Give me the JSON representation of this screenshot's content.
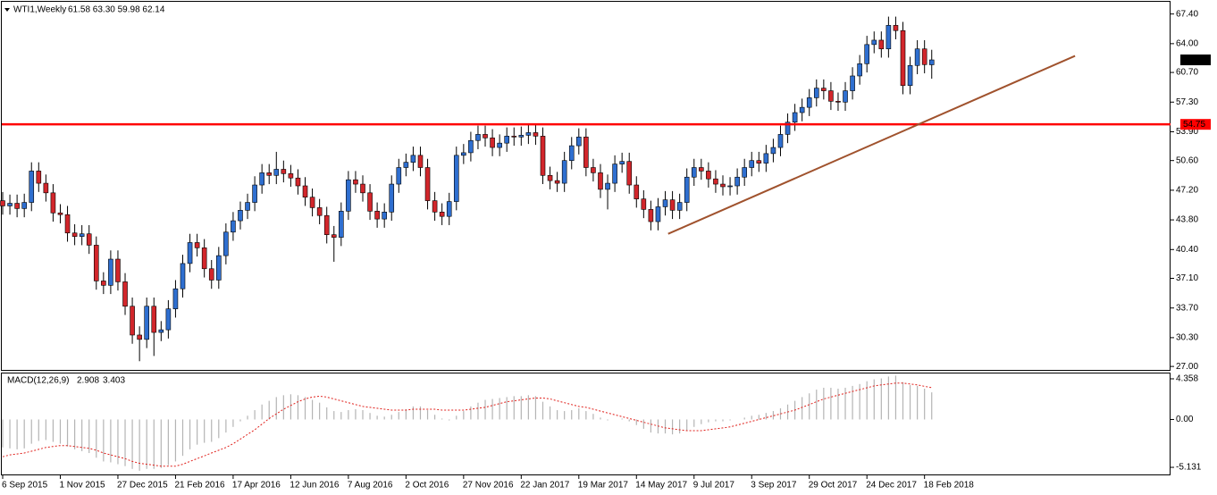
{
  "chart_data": [
    {
      "type": "candlestick",
      "header": {
        "symbol": "WTI1,Weekly",
        "ohlc": "61.58 63.30 59.98 62.14"
      },
      "categories": [
        "6 Sep 2015",
        null,
        null,
        null,
        null,
        null,
        null,
        null,
        "1 Nov 2015",
        null,
        null,
        null,
        null,
        null,
        null,
        null,
        "27 Dec 2015",
        null,
        null,
        null,
        null,
        null,
        null,
        null,
        "21 Feb 2016",
        null,
        null,
        null,
        null,
        null,
        null,
        null,
        "17 Apr 2016",
        null,
        null,
        null,
        null,
        null,
        null,
        null,
        "12 Jun 2016",
        null,
        null,
        null,
        null,
        null,
        null,
        null,
        "7 Aug 2016",
        null,
        null,
        null,
        null,
        null,
        null,
        null,
        "2 Oct 2016",
        null,
        null,
        null,
        null,
        null,
        null,
        null,
        "27 Nov 2016",
        null,
        null,
        null,
        null,
        null,
        null,
        null,
        "22 Jan 2017",
        null,
        null,
        null,
        null,
        null,
        null,
        null,
        "19 Mar 2017",
        null,
        null,
        null,
        null,
        null,
        null,
        null,
        "14 May 2017",
        null,
        null,
        null,
        null,
        null,
        null,
        null,
        "9 Jul 2017",
        null,
        null,
        null,
        null,
        null,
        null,
        null,
        "3 Sep 2017",
        null,
        null,
        null,
        null,
        null,
        null,
        null,
        "29 Oct 2017",
        null,
        null,
        null,
        null,
        null,
        null,
        null,
        "24 Dec 2017",
        null,
        null,
        null,
        null,
        null,
        null,
        null,
        "18 Feb 2018",
        null
      ],
      "open": [
        46.0,
        45.4,
        45.7,
        45.1,
        45.8,
        49.4,
        48.0,
        46.9,
        44.6,
        44.4,
        42.3,
        41.9,
        42.2,
        40.9,
        36.8,
        36.3,
        39.3,
        36.7,
        33.9,
        30.6,
        30.1,
        33.9,
        30.9,
        31.2,
        33.6,
        35.9,
        38.8,
        41.2,
        40.6,
        38.2,
        36.9,
        39.7,
        42.4,
        43.7,
        44.9,
        45.8,
        47.8,
        49.2,
        48.9,
        49.6,
        49.1,
        48.6,
        47.7,
        46.4,
        45.2,
        44.3,
        42.1,
        41.8,
        44.8,
        48.4,
        47.9,
        46.9,
        44.8,
        43.9,
        44.7,
        47.9,
        49.8,
        50.4,
        51.2,
        49.8,
        46.0,
        44.7,
        44.2,
        45.9,
        51.2,
        51.5,
        52.9,
        53.6,
        53.2,
        52.1,
        52.6,
        53.4,
        53.3,
        53.5,
        53.8,
        53.4,
        48.9,
        48.3,
        48.0,
        50.6,
        52.3,
        53.3,
        49.8,
        49.2,
        47.3,
        48.0,
        50.2,
        50.5,
        47.8,
        46.2,
        45.0,
        43.6,
        45.3,
        46.1,
        44.9,
        45.8,
        48.7,
        49.8,
        49.4,
        48.5,
        47.9,
        47.6,
        47.7,
        48.7,
        49.8,
        50.6,
        50.3,
        51.4,
        52.1,
        53.6,
        55.0,
        56.1,
        56.7,
        57.8,
        58.9,
        58.6,
        57.4,
        57.3,
        58.6,
        60.3,
        61.7,
        63.9,
        64.4,
        63.4,
        66.1,
        65.5,
        59.2,
        61.5,
        63.4,
        61.58
      ],
      "high": [
        47.0,
        46.7,
        46.7,
        46.8,
        50.4,
        50.4,
        49.0,
        47.9,
        45.6,
        45.4,
        43.3,
        43.2,
        43.2,
        41.9,
        37.8,
        40.3,
        40.3,
        37.7,
        34.9,
        31.6,
        34.9,
        34.9,
        32.2,
        34.6,
        36.9,
        39.8,
        42.2,
        42.2,
        41.6,
        39.2,
        40.7,
        43.4,
        44.7,
        45.9,
        46.8,
        48.8,
        50.2,
        50.2,
        51.6,
        50.6,
        50.1,
        49.6,
        48.7,
        47.4,
        46.2,
        45.3,
        43.1,
        45.8,
        49.4,
        49.4,
        48.9,
        47.9,
        45.8,
        45.7,
        48.9,
        50.8,
        51.4,
        52.2,
        52.2,
        50.8,
        47.0,
        45.7,
        46.9,
        52.2,
        52.5,
        53.9,
        54.6,
        54.6,
        54.2,
        53.6,
        54.4,
        54.4,
        54.5,
        54.8,
        54.8,
        54.4,
        49.9,
        49.3,
        51.6,
        53.3,
        54.3,
        54.3,
        50.8,
        50.2,
        49.0,
        51.2,
        51.5,
        51.5,
        48.8,
        47.2,
        46.0,
        46.3,
        47.1,
        47.1,
        46.8,
        49.7,
        50.8,
        50.8,
        50.4,
        49.5,
        48.9,
        48.7,
        49.7,
        50.8,
        51.6,
        51.6,
        52.4,
        53.1,
        54.6,
        56.0,
        57.1,
        57.7,
        58.8,
        59.9,
        59.9,
        59.6,
        58.4,
        59.6,
        61.3,
        62.7,
        64.9,
        65.4,
        65.4,
        67.1,
        67.1,
        66.5,
        62.5,
        64.4,
        64.4,
        63.3
      ],
      "low": [
        44.4,
        44.4,
        44.1,
        44.1,
        44.8,
        47.0,
        45.9,
        43.6,
        43.4,
        41.3,
        40.9,
        40.9,
        39.9,
        35.8,
        35.3,
        35.3,
        35.7,
        32.9,
        29.6,
        27.6,
        29.1,
        28.2,
        29.9,
        30.2,
        32.6,
        34.9,
        37.8,
        39.6,
        37.2,
        35.9,
        35.9,
        38.7,
        41.4,
        42.7,
        43.9,
        44.8,
        46.8,
        47.9,
        47.9,
        48.1,
        47.6,
        46.7,
        45.4,
        44.2,
        43.3,
        41.1,
        39.0,
        40.8,
        43.8,
        46.9,
        45.9,
        43.8,
        42.9,
        42.9,
        43.7,
        46.9,
        48.8,
        49.4,
        48.8,
        45.0,
        43.7,
        43.2,
        43.2,
        44.9,
        50.2,
        50.5,
        51.9,
        52.2,
        51.1,
        51.1,
        51.6,
        52.3,
        52.3,
        52.5,
        52.4,
        47.9,
        47.3,
        47.0,
        47.0,
        49.6,
        51.3,
        48.8,
        48.2,
        46.3,
        45.0,
        47.0,
        49.2,
        46.8,
        45.2,
        44.0,
        42.6,
        42.6,
        44.3,
        43.9,
        43.9,
        44.8,
        47.7,
        48.4,
        47.5,
        46.9,
        46.6,
        46.6,
        46.7,
        47.7,
        48.8,
        49.3,
        49.3,
        50.4,
        51.1,
        52.6,
        54.0,
        55.1,
        55.7,
        56.8,
        57.6,
        56.4,
        56.3,
        56.3,
        57.6,
        59.3,
        60.7,
        62.9,
        62.4,
        62.4,
        64.5,
        58.2,
        58.2,
        60.5,
        60.6,
        59.98
      ],
      "close": [
        45.4,
        45.7,
        45.1,
        45.8,
        49.4,
        48.0,
        46.9,
        44.6,
        44.4,
        42.3,
        41.9,
        42.2,
        40.9,
        36.8,
        36.3,
        39.3,
        36.7,
        33.9,
        30.6,
        30.1,
        33.9,
        30.9,
        31.2,
        33.6,
        35.9,
        38.8,
        41.2,
        40.6,
        38.2,
        36.9,
        39.7,
        42.4,
        43.7,
        44.9,
        45.8,
        47.8,
        49.2,
        48.9,
        49.6,
        49.1,
        48.6,
        47.7,
        46.4,
        45.2,
        44.3,
        42.1,
        41.8,
        44.8,
        48.4,
        47.9,
        46.9,
        44.8,
        43.9,
        44.7,
        47.9,
        49.8,
        50.4,
        51.2,
        49.8,
        46.0,
        44.7,
        44.2,
        45.9,
        51.2,
        51.5,
        52.9,
        53.6,
        53.2,
        52.1,
        52.6,
        53.4,
        53.3,
        53.5,
        53.8,
        53.4,
        48.9,
        48.3,
        48.0,
        50.6,
        52.3,
        53.3,
        49.8,
        49.2,
        47.3,
        48.0,
        50.2,
        50.5,
        47.8,
        46.2,
        45.0,
        43.6,
        45.3,
        46.1,
        44.9,
        45.8,
        48.7,
        49.8,
        49.4,
        48.5,
        47.9,
        47.6,
        47.7,
        48.7,
        49.8,
        50.6,
        50.3,
        51.4,
        52.1,
        53.6,
        55.0,
        56.1,
        56.7,
        57.8,
        58.9,
        58.6,
        57.4,
        57.3,
        58.6,
        60.3,
        61.7,
        63.9,
        64.4,
        63.4,
        66.1,
        65.5,
        59.2,
        61.5,
        63.4,
        61.6,
        62.14
      ],
      "up_color": "#2f6fd0",
      "down_color": "#d2262b",
      "ylim": [
        26.5,
        68.8
      ],
      "yticks": [
        {
          "value": 67.4,
          "label": "67.40"
        },
        {
          "value": 64,
          "label": "64.00"
        },
        {
          "value": 60.7,
          "label": "60.70"
        },
        {
          "value": 57.3,
          "label": "57.30"
        },
        {
          "value": 53.9,
          "label": "53.90"
        },
        {
          "value": 50.6,
          "label": "50.60"
        },
        {
          "value": 47.2,
          "label": "47.20"
        },
        {
          "value": 43.8,
          "label": "43.80"
        },
        {
          "value": 40.4,
          "label": "40.40"
        },
        {
          "value": 37.1,
          "label": "37.10"
        },
        {
          "value": 33.7,
          "label": "33.70"
        },
        {
          "value": 30.3,
          "label": "30.30"
        },
        {
          "value": 27,
          "label": "27.00"
        }
      ],
      "hline": {
        "value": 54.75,
        "color": "#ff0000"
      },
      "trendline": {
        "x": [
          92.4,
          148.9
        ],
        "y": [
          42.2,
          62.6
        ],
        "color": "#a0522d"
      }
    },
    {
      "type": "macd",
      "title": "MACD(12,26,9)",
      "histogram": [
        -3.0,
        -3.1,
        -3.2,
        -3.1,
        -2.6,
        -2.3,
        -2.2,
        -2.4,
        -2.6,
        -2.9,
        -3.2,
        -3.4,
        -3.6,
        -4.1,
        -4.5,
        -4.6,
        -4.8,
        -5.0,
        -5.3,
        -5.5,
        -5.3,
        -5.3,
        -5.2,
        -4.9,
        -4.5,
        -3.9,
        -3.2,
        -2.7,
        -2.5,
        -2.4,
        -2.0,
        -1.4,
        -0.8,
        -0.2,
        0.4,
        1.0,
        1.6,
        2.0,
        2.4,
        2.6,
        2.7,
        2.6,
        2.4,
        2.1,
        1.8,
        1.3,
        0.9,
        0.8,
        1.0,
        1.1,
        1.0,
        0.7,
        0.4,
        0.3,
        0.5,
        0.8,
        1.1,
        1.4,
        1.4,
        1.0,
        0.5,
        0.1,
        -0.1,
        0.4,
        0.9,
        1.4,
        1.8,
        2.1,
        2.2,
        2.3,
        2.4,
        2.5,
        2.5,
        2.6,
        2.5,
        1.9,
        1.4,
        1.0,
        0.9,
        1.0,
        1.2,
        0.9,
        0.6,
        0.2,
        -0.1,
        0.0,
        0.1,
        -0.2,
        -0.6,
        -1.0,
        -1.4,
        -1.5,
        -1.5,
        -1.6,
        -1.5,
        -1.2,
        -0.8,
        -0.5,
        -0.3,
        -0.2,
        -0.2,
        -0.1,
        0.0,
        0.2,
        0.4,
        0.5,
        0.7,
        0.9,
        1.2,
        1.6,
        2.0,
        2.4,
        2.8,
        3.2,
        3.4,
        3.4,
        3.3,
        3.4,
        3.6,
        3.8,
        4.1,
        4.3,
        4.4,
        4.6,
        4.7,
        4.0,
        3.7,
        3.6,
        3.3,
        2.908
      ],
      "signal": [
        -4.0,
        -3.8,
        -3.7,
        -3.6,
        -3.4,
        -3.2,
        -3.0,
        -2.9,
        -2.8,
        -2.8,
        -2.9,
        -3.0,
        -3.1,
        -3.3,
        -3.6,
        -3.8,
        -4.0,
        -4.2,
        -4.5,
        -4.7,
        -4.8,
        -4.9,
        -5.0,
        -5.0,
        -5.0,
        -4.8,
        -4.5,
        -4.2,
        -3.9,
        -3.6,
        -3.3,
        -3.0,
        -2.6,
        -2.1,
        -1.6,
        -1.1,
        -0.5,
        0.1,
        0.6,
        1.1,
        1.5,
        1.9,
        2.2,
        2.4,
        2.5,
        2.4,
        2.2,
        2.0,
        1.8,
        1.6,
        1.4,
        1.3,
        1.2,
        1.1,
        1.0,
        1.0,
        1.0,
        1.1,
        1.1,
        1.1,
        1.1,
        1.0,
        1.0,
        1.0,
        1.0,
        1.1,
        1.2,
        1.3,
        1.5,
        1.7,
        1.9,
        2.0,
        2.1,
        2.2,
        2.3,
        2.3,
        2.2,
        2.0,
        1.8,
        1.6,
        1.4,
        1.3,
        1.1,
        0.9,
        0.7,
        0.5,
        0.3,
        0.1,
        -0.1,
        -0.3,
        -0.5,
        -0.7,
        -0.9,
        -1.0,
        -1.1,
        -1.2,
        -1.2,
        -1.2,
        -1.1,
        -1.0,
        -0.9,
        -0.8,
        -0.6,
        -0.4,
        -0.2,
        0.0,
        0.2,
        0.4,
        0.6,
        0.8,
        1.0,
        1.3,
        1.6,
        1.9,
        2.2,
        2.4,
        2.6,
        2.8,
        3.0,
        3.2,
        3.4,
        3.6,
        3.7,
        3.8,
        3.9,
        3.9,
        3.8,
        3.7,
        3.55,
        3.403
      ],
      "histogram_color": "#b4b4b4",
      "signal_color": "#e0201b",
      "ylim": [
        -5.99,
        4.93
      ],
      "yticks": [
        4.358,
        {
          "value": 0,
          "label": "0.00"
        },
        -5.131
      ]
    }
  ]
}
